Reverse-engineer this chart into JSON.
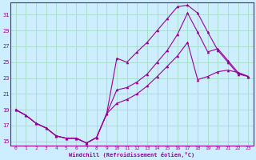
{
  "xlabel": "Windchill (Refroidissement éolien,°C)",
  "bg_color": "#cceeff",
  "grid_color": "#aaddcc",
  "line_color": "#990099",
  "xlim": [
    -0.5,
    23.5
  ],
  "ylim": [
    14.5,
    32.5
  ],
  "yticks": [
    15,
    17,
    19,
    21,
    23,
    25,
    27,
    29,
    31
  ],
  "xticks": [
    0,
    1,
    2,
    3,
    4,
    5,
    6,
    7,
    8,
    9,
    10,
    11,
    12,
    13,
    14,
    15,
    16,
    17,
    18,
    19,
    20,
    21,
    22,
    23
  ],
  "curve1_x": [
    0,
    1,
    2,
    3,
    4,
    5,
    6,
    7,
    8,
    9,
    10,
    11,
    12,
    13,
    14,
    15,
    16,
    17,
    18,
    19,
    20,
    21,
    22,
    23
  ],
  "curve1_y": [
    19.0,
    18.3,
    17.3,
    16.7,
    15.7,
    15.4,
    15.4,
    14.8,
    15.5,
    18.5,
    25.5,
    25.0,
    26.3,
    27.5,
    29.0,
    30.5,
    32.0,
    32.2,
    31.2,
    28.8,
    26.5,
    25.0,
    23.5,
    23.2
  ],
  "curve2_x": [
    0,
    1,
    2,
    3,
    4,
    5,
    6,
    7,
    8,
    9,
    10,
    11,
    12,
    13,
    14,
    15,
    16,
    17,
    18,
    19,
    20,
    21,
    22,
    23
  ],
  "curve2_y": [
    19.0,
    18.3,
    17.3,
    16.7,
    15.7,
    15.4,
    15.4,
    14.8,
    15.5,
    18.5,
    21.5,
    21.8,
    22.5,
    23.5,
    25.0,
    26.5,
    28.5,
    31.2,
    28.8,
    26.3,
    26.7,
    25.2,
    23.7,
    23.2
  ],
  "curve3_x": [
    0,
    1,
    2,
    3,
    4,
    5,
    6,
    7,
    8,
    9,
    10,
    11,
    12,
    13,
    14,
    15,
    16,
    17,
    18,
    19,
    20,
    21,
    22,
    23
  ],
  "curve3_y": [
    19.0,
    18.3,
    17.3,
    16.7,
    15.7,
    15.4,
    15.4,
    14.8,
    15.5,
    18.5,
    19.8,
    20.3,
    21.0,
    22.0,
    23.2,
    24.5,
    25.8,
    27.5,
    22.8,
    23.2,
    23.8,
    24.0,
    23.7,
    23.2
  ]
}
